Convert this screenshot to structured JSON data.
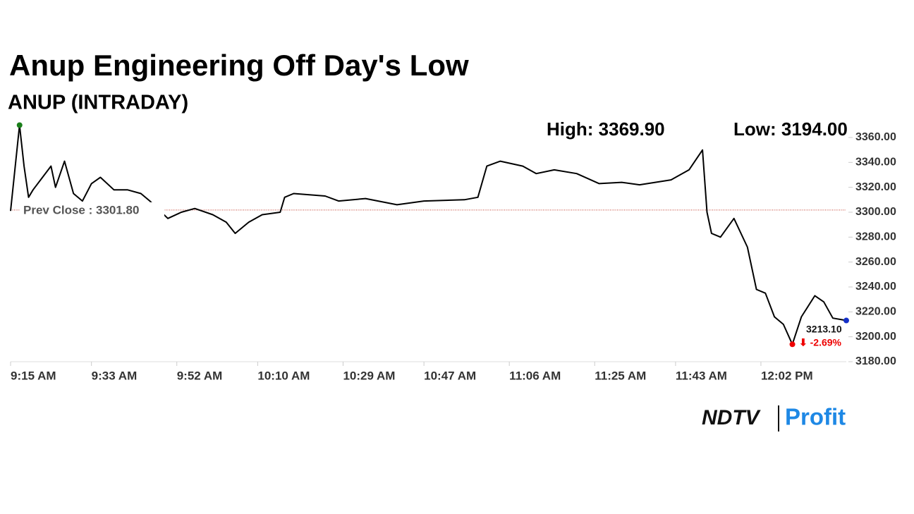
{
  "chart_data": {
    "type": "line",
    "title": "Anup Engineering Off Day's Low",
    "subtitle": "ANUP (INTRADAY)",
    "high_label": "High: 3369.90",
    "low_label": "Low: 3194.00",
    "prev_close": {
      "value": 3301.8,
      "label": "Prev Close : 3301.80"
    },
    "last_label": "3213.10",
    "change_label": "⬇ -2.69%",
    "color": "#000000",
    "x": [
      "9:15 AM",
      "9:17 AM",
      "9:18 AM",
      "9:19 AM",
      "9:20 AM",
      "9:24 AM",
      "9:25 AM",
      "9:27 AM",
      "9:29 AM",
      "9:31 AM",
      "9:33 AM",
      "9:35 AM",
      "9:38 AM",
      "9:41 AM",
      "9:44 AM",
      "9:46 AM",
      "9:50 AM",
      "9:53 AM",
      "9:56 AM",
      "10:00 AM",
      "10:03 AM",
      "10:05 AM",
      "10:08 AM",
      "10:11 AM",
      "10:15 AM",
      "10:16 AM",
      "10:18 AM",
      "10:25 AM",
      "10:28 AM",
      "10:34 AM",
      "10:41 AM",
      "10:47 AM",
      "10:56 AM",
      "10:59 AM",
      "11:01 AM",
      "11:04 AM",
      "11:09 AM",
      "11:12 AM",
      "11:16 AM",
      "11:21 AM",
      "11:26 AM",
      "11:31 AM",
      "11:35 AM",
      "11:42 AM",
      "11:46 AM",
      "11:49 AM",
      "11:50 AM",
      "11:51 AM",
      "11:53 AM",
      "11:56 AM",
      "11:59 AM",
      "12:01 PM",
      "12:03 PM",
      "12:05 PM",
      "12:07 PM",
      "12:09 PM",
      "12:11 PM",
      "12:14 PM",
      "12:16 PM",
      "12:18 PM",
      "12:21 PM"
    ],
    "values": [
      3301,
      3369.9,
      3337,
      3312,
      3318,
      3337,
      3320,
      3341,
      3315,
      3309,
      3323,
      3328,
      3318,
      3318,
      3315,
      3309,
      3295,
      3300,
      3303,
      3298,
      3292,
      3283,
      3292,
      3298,
      3300,
      3312,
      3315,
      3313,
      3309,
      3311,
      3306,
      3309,
      3310,
      3312,
      3337,
      3341,
      3337,
      3331,
      3334,
      3331,
      3323,
      3324,
      3322,
      3326,
      3334,
      3350,
      3300,
      3283,
      3280,
      3295,
      3272,
      3238,
      3235,
      3216,
      3210,
      3194,
      3216,
      3233,
      3228,
      3215,
      3213.1
    ],
    "xlim": [
      "9:15 AM",
      "12:21 PM"
    ],
    "xticks": [
      "9:15 AM",
      "9:33 AM",
      "9:52 AM",
      "10:10 AM",
      "10:29 AM",
      "10:47 AM",
      "11:06 AM",
      "11:25 AM",
      "11:43 AM",
      "12:02 PM"
    ],
    "ylim": [
      3180,
      3360
    ],
    "yticks": [
      {
        "value": 3180,
        "label": "3180.00"
      },
      {
        "value": 3200,
        "label": "3200.00"
      },
      {
        "value": 3220,
        "label": "3220.00"
      },
      {
        "value": 3240,
        "label": "3240.00"
      },
      {
        "value": 3260,
        "label": "3260.00"
      },
      {
        "value": 3280,
        "label": "3280.00"
      },
      {
        "value": 3300,
        "label": "3300.00"
      },
      {
        "value": 3320,
        "label": "3320.00"
      },
      {
        "value": 3340,
        "label": "3340.00"
      },
      {
        "value": 3360,
        "label": "3360.00"
      }
    ],
    "grid": false
  },
  "logo": {
    "left": "NDTV",
    "right": "Profit"
  }
}
